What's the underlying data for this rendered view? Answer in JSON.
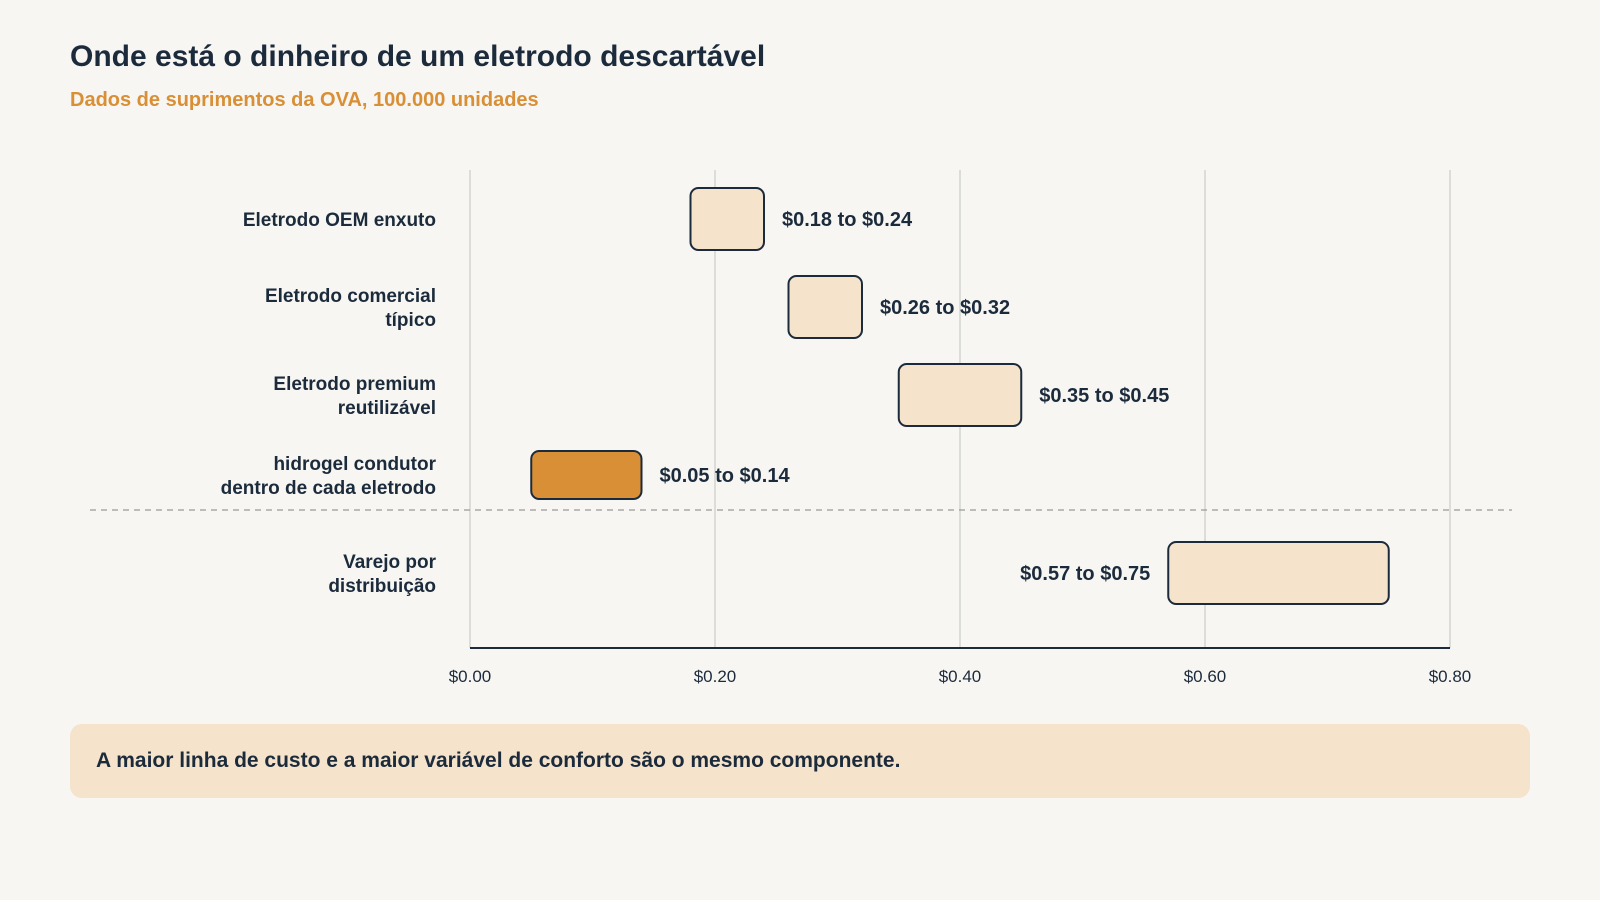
{
  "header": {
    "title": "Onde está o dinheiro de um eletrodo descartável",
    "subtitle": "Dados de suprimentos da OVA, 100.000 unidades"
  },
  "callout": {
    "text": "A maior linha de custo e a maior variável de conforto são o mesmo componente."
  },
  "colors": {
    "background": "#f7f6f2",
    "text": "#1c2b3c",
    "accent": "#d98f35",
    "bar_fill": "#f5e3cb",
    "highlight_fill": "#d98f35",
    "bar_stroke": "#1c2b3c",
    "grid": "#d4d4d0"
  },
  "chart_data": {
    "type": "bar",
    "orientation": "horizontal",
    "style": "range",
    "xlim": [
      0,
      0.8
    ],
    "xticks": [
      "$0.00",
      "$0.20",
      "$0.40",
      "$0.60",
      "$0.80"
    ],
    "xtick_values": [
      0,
      0.2,
      0.4,
      0.6,
      0.8
    ],
    "grid": true,
    "separator_after_row": 3,
    "rows": [
      {
        "label": [
          "Eletrodo OEM enxuto"
        ],
        "low": 0.18,
        "high": 0.24,
        "range_label": "$0.18 to $0.24",
        "highlight": false,
        "label_side": "right"
      },
      {
        "label": [
          "Eletrodo comercial",
          "típico"
        ],
        "low": 0.26,
        "high": 0.32,
        "range_label": "$0.26 to $0.32",
        "highlight": false,
        "label_side": "right"
      },
      {
        "label": [
          "Eletrodo premium",
          "reutilizável"
        ],
        "low": 0.35,
        "high": 0.45,
        "range_label": "$0.35 to $0.45",
        "highlight": false,
        "label_side": "right"
      },
      {
        "label": [
          "hidrogel condutor",
          "dentro de cada eletrodo"
        ],
        "low": 0.05,
        "high": 0.14,
        "range_label": "$0.05 to $0.14",
        "highlight": true,
        "label_side": "right"
      },
      {
        "label": [
          "Varejo por",
          "distribuição"
        ],
        "low": 0.57,
        "high": 0.75,
        "range_label": "$0.57 to $0.75",
        "highlight": false,
        "label_side": "left"
      }
    ]
  }
}
